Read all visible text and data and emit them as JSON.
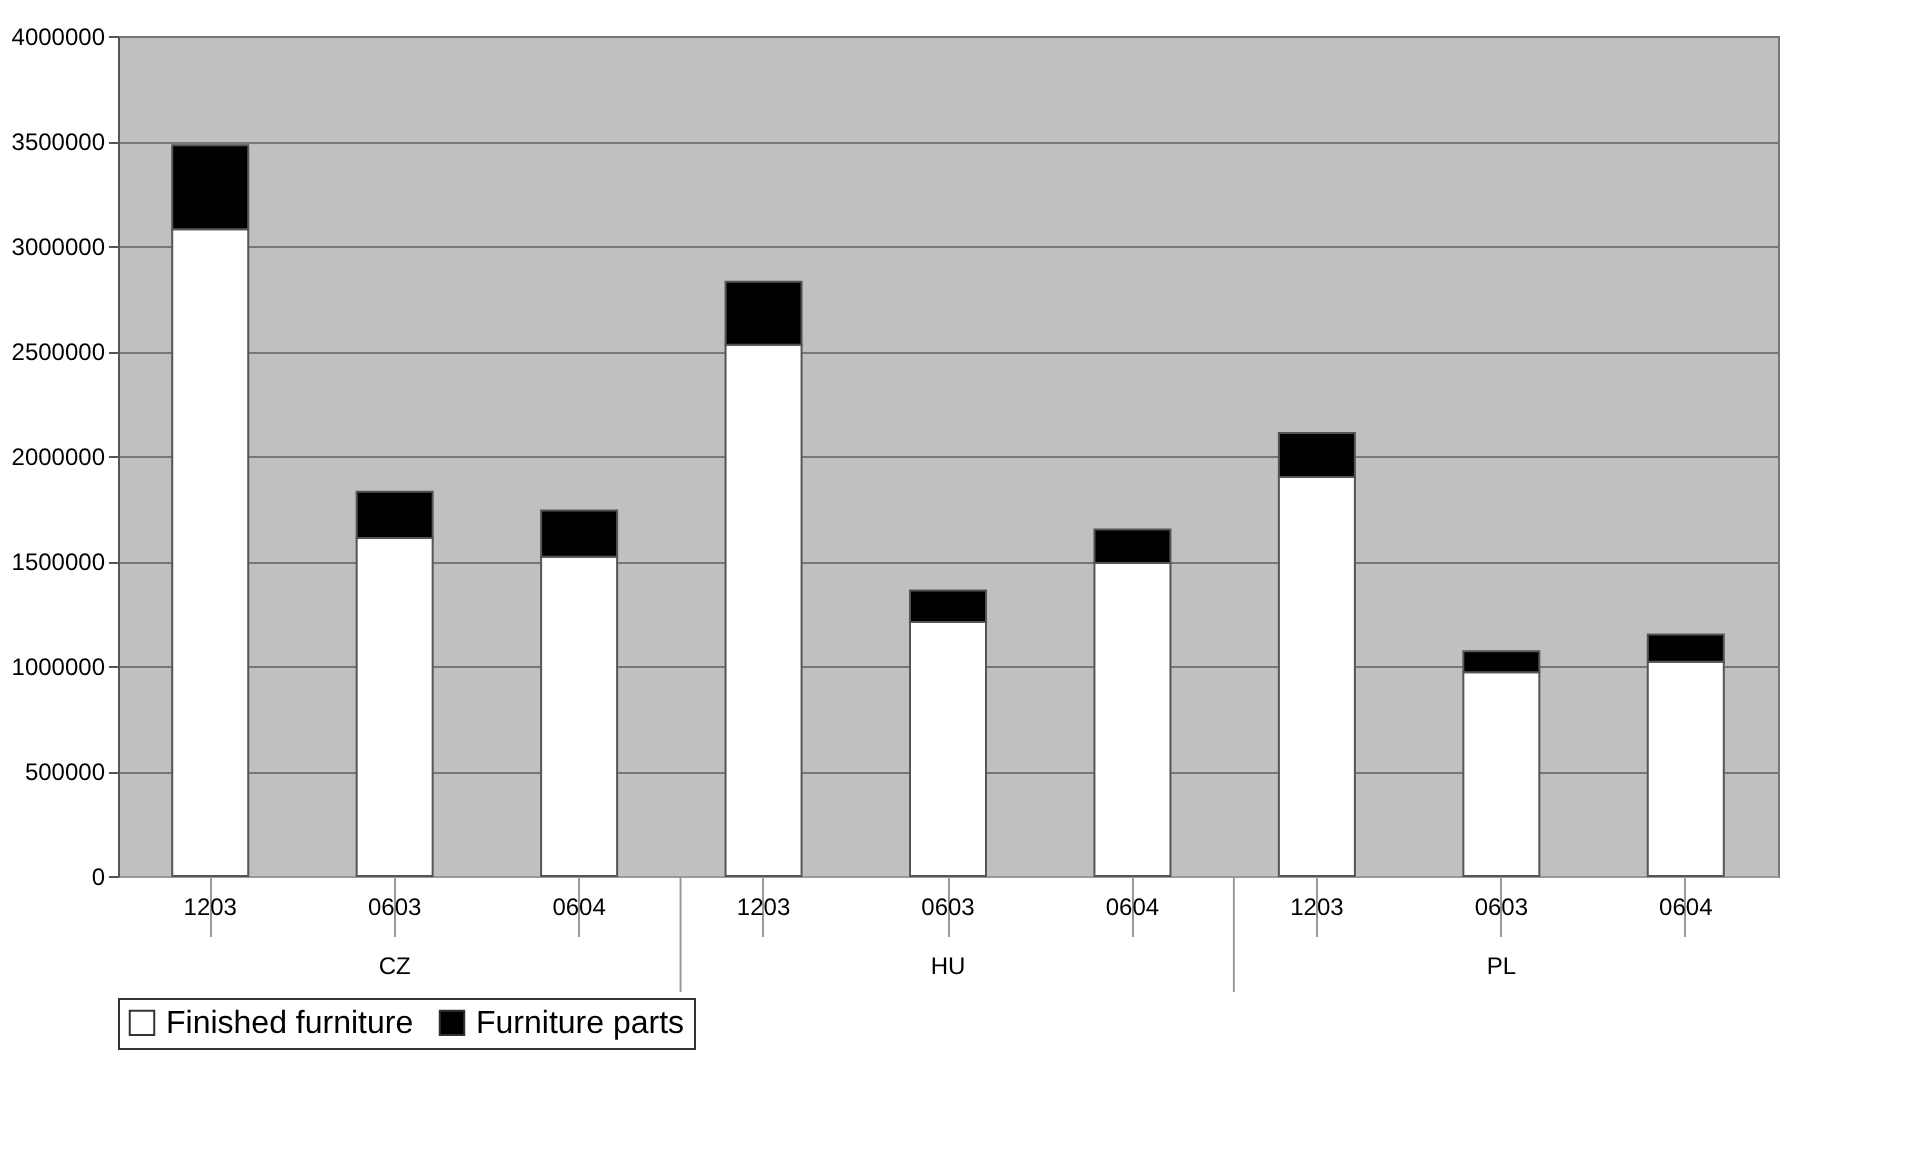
{
  "chart_data": {
    "type": "bar",
    "stacked": true,
    "categories": [
      "1203",
      "0603",
      "0604",
      "1203",
      "0603",
      "0604",
      "1203",
      "0603",
      "0604"
    ],
    "series": [
      {
        "name": "Finished furniture",
        "color": "#ffffff",
        "values": [
          3080000,
          1610000,
          1520000,
          2530000,
          1210000,
          1490000,
          1900000,
          970000,
          1020000
        ]
      },
      {
        "name": "Furniture parts",
        "color": "#000000",
        "values": [
          400000,
          220000,
          220000,
          300000,
          150000,
          160000,
          210000,
          100000,
          130000
        ]
      }
    ],
    "annotations": [
      "CZ",
      "HU",
      "PL"
    ],
    "ylim": [
      0,
      4000000
    ],
    "yticks": [
      0,
      500000,
      1000000,
      1500000,
      2000000,
      2500000,
      3000000,
      3500000,
      4000000
    ],
    "grid": "y",
    "legend": "bottom"
  }
}
